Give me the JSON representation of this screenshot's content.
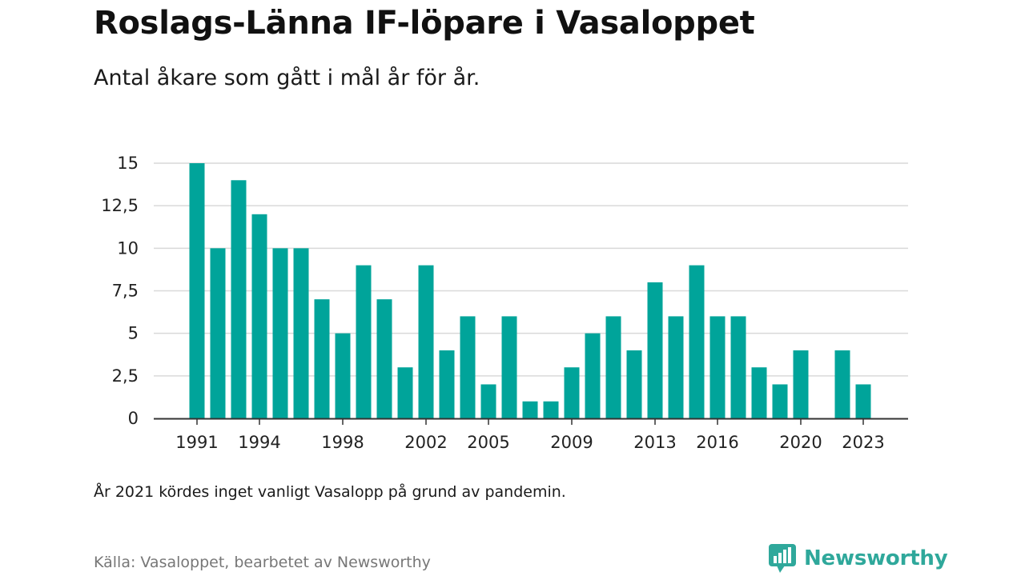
{
  "title": "Roslags-Länna IF-löpare i Vasaloppet",
  "subtitle": "Antal åkare som gått i mål år för år.",
  "note": "År 2021 kördes inget vanligt Vasalopp på grund av pandemin.",
  "source": "Källa: Vasaloppet, bearbetet av Newsworthy",
  "brand": {
    "name": "Newsworthy",
    "icon": "newsworthy-logo-icon",
    "color": "#2fa89b"
  },
  "chart_data": {
    "type": "bar",
    "x": [
      1991,
      1992,
      1993,
      1994,
      1995,
      1996,
      1997,
      1998,
      1999,
      2000,
      2001,
      2002,
      2003,
      2004,
      2005,
      2006,
      2007,
      2008,
      2009,
      2010,
      2011,
      2012,
      2013,
      2014,
      2015,
      2016,
      2017,
      2018,
      2019,
      2020,
      2021,
      2022,
      2023
    ],
    "values": [
      15,
      10,
      14,
      12,
      10,
      10,
      7,
      5,
      9,
      7,
      3,
      9,
      4,
      6,
      2,
      6,
      1,
      1,
      3,
      5,
      6,
      4,
      8,
      6,
      9,
      6,
      6,
      3,
      2,
      4,
      0,
      4,
      2
    ],
    "xticks": [
      1991,
      1994,
      1998,
      2002,
      2005,
      2009,
      2013,
      2016,
      2020,
      2023
    ],
    "yticks": [
      0,
      2.5,
      5,
      7.5,
      10,
      12.5,
      15
    ],
    "ytick_labels": [
      "0",
      "2,5",
      "5",
      "7,5",
      "10",
      "12,5",
      "15"
    ],
    "ylim": [
      0,
      15
    ],
    "xlabel": "",
    "ylabel": "",
    "grid": true,
    "bar_color": "#00a49a"
  }
}
